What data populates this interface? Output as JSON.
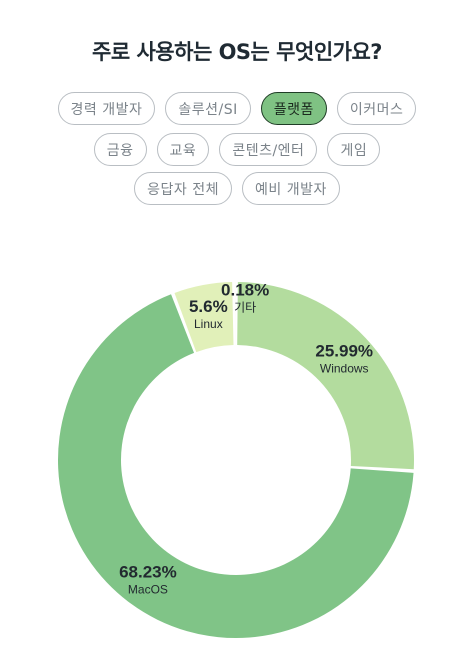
{
  "page": {
    "title": "주로 사용하는 OS는 무엇인가요?"
  },
  "filters": {
    "tags": [
      {
        "label": "경력 개발자",
        "active": false
      },
      {
        "label": "솔루션/SI",
        "active": false
      },
      {
        "label": "플랫폼",
        "active": true
      },
      {
        "label": "이커머스",
        "active": false
      },
      {
        "label": "금융",
        "active": false
      },
      {
        "label": "교육",
        "active": false
      },
      {
        "label": "콘텐츠/엔터",
        "active": false
      },
      {
        "label": "게임",
        "active": false
      },
      {
        "label": "응답자 전체",
        "active": false
      },
      {
        "label": "예비 개발자",
        "active": false
      }
    ]
  },
  "chart_data": {
    "type": "pie",
    "variant": "donut",
    "labels": [
      "Windows",
      "MacOS",
      "Linux",
      "기타"
    ],
    "values": [
      25.99,
      68.23,
      5.6,
      0.18
    ],
    "value_labels": [
      "25.99%",
      "68.23%",
      "5.6%",
      "0.18%"
    ],
    "colors": [
      "#b3dc9e",
      "#80c487",
      "#e1f0b9",
      "#f1f7dc"
    ],
    "direction": "clockwise",
    "start": "top"
  }
}
